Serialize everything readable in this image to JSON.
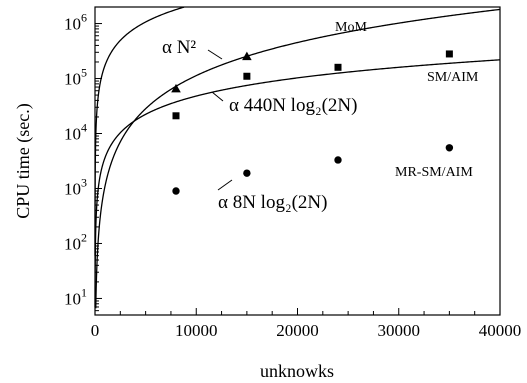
{
  "chart_data": {
    "type": "scatter",
    "title": "",
    "xlabel": "unknowks",
    "ylabel": "CPU time (sec.)",
    "xlim": [
      0,
      40000
    ],
    "ylim": [
      5,
      2000000
    ],
    "y_scale": "log",
    "grid": false,
    "x_ticks": [
      0,
      10000,
      20000,
      30000,
      40000
    ],
    "x_tick_labels": [
      "0",
      "10000",
      "20000",
      "30000",
      "40000"
    ],
    "y_ticks": [
      10,
      100,
      1000,
      10000,
      100000,
      1000000
    ],
    "series": [
      {
        "name": "MoM",
        "marker": "triangle",
        "x": [
          8000,
          15000
        ],
        "y": [
          65000,
          250000
        ],
        "fit": "α N²"
      },
      {
        "name": "SM/AIM",
        "marker": "square",
        "x": [
          8000,
          15000,
          24000,
          35000
        ],
        "y": [
          21000,
          110000,
          160000,
          280000
        ],
        "fit": "α 440N log₂(2N)"
      },
      {
        "name": "MR-SM/AIM",
        "marker": "circle",
        "x": [
          8000,
          15000,
          24000,
          35000
        ],
        "y": [
          900,
          1900,
          3300,
          5500
        ],
        "fit": "α 8N log₂(2N)"
      }
    ],
    "annotations": {
      "n2": "α N²",
      "n440": "α 440N log₂(2N)",
      "n8": "α 8N log₂(2N)"
    }
  }
}
